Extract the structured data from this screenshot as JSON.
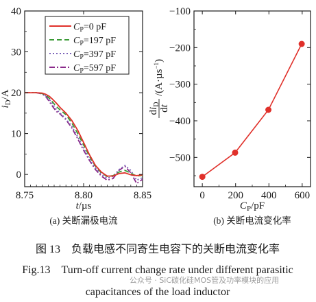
{
  "chart_data": [
    {
      "type": "line",
      "caption": "(a) 关断漏极电流",
      "xlabel": "t/µs",
      "ylabel": "iD/A",
      "xlim": [
        8.75,
        8.85
      ],
      "ylim": [
        -3,
        40
      ],
      "xticks": [
        "8.75",
        "8.80",
        "8.85"
      ],
      "yticks": [
        "0",
        "10",
        "20",
        "30",
        "40"
      ],
      "legend_position": "top-right",
      "series": [
        {
          "name": "CP=0 pF",
          "color": "#e0302a",
          "dash": "",
          "x": [
            8.75,
            8.755,
            8.76,
            8.765,
            8.768,
            8.771,
            8.774,
            8.777,
            8.78,
            8.785,
            8.79,
            8.795,
            8.8,
            8.805,
            8.81,
            8.815,
            8.82,
            8.825,
            8.83,
            8.835,
            8.84,
            8.845,
            8.85
          ],
          "y": [
            20,
            20,
            20,
            19.9,
            19.6,
            19.1,
            18.3,
            17.4,
            16.4,
            15.0,
            13.2,
            10.8,
            7.8,
            4.8,
            2.2,
            0.6,
            -0.4,
            -0.4,
            0.2,
            0.4,
            -0.1,
            -0.3,
            -0.1
          ]
        },
        {
          "name": "CP=197 pF",
          "color": "#3a9a35",
          "dash": "7,4",
          "x": [
            8.75,
            8.755,
            8.76,
            8.765,
            8.768,
            8.771,
            8.774,
            8.777,
            8.78,
            8.785,
            8.79,
            8.795,
            8.8,
            8.805,
            8.81,
            8.815,
            8.82,
            8.825,
            8.83,
            8.835,
            8.84,
            8.845,
            8.85
          ],
          "y": [
            20,
            20,
            20,
            19.8,
            19.4,
            18.6,
            17.6,
            16.6,
            15.8,
            14.6,
            12.6,
            10.0,
            7.2,
            4.4,
            2.0,
            0.4,
            -0.5,
            -0.3,
            0.6,
            1.0,
            0.3,
            -0.4,
            -0.2
          ]
        },
        {
          "name": "CP=397 pF",
          "color": "#7b62b8",
          "dash": "2,3",
          "x": [
            8.75,
            8.755,
            8.76,
            8.765,
            8.768,
            8.771,
            8.774,
            8.777,
            8.78,
            8.785,
            8.79,
            8.795,
            8.8,
            8.805,
            8.81,
            8.815,
            8.82,
            8.825,
            8.83,
            8.835,
            8.84,
            8.845,
            8.85
          ],
          "y": [
            20,
            20,
            20,
            19.8,
            19.2,
            18.3,
            17.1,
            15.9,
            15.0,
            13.6,
            11.8,
            9.2,
            6.4,
            3.8,
            1.6,
            0.0,
            -0.9,
            -0.5,
            1.2,
            2.2,
            1.0,
            -1.4,
            -0.8
          ]
        },
        {
          "name": "CP=597 pF",
          "color": "#8a2a8a",
          "dash": "8,3,2,3",
          "x": [
            8.75,
            8.755,
            8.76,
            8.765,
            8.768,
            8.771,
            8.774,
            8.777,
            8.78,
            8.785,
            8.79,
            8.795,
            8.8,
            8.805,
            8.81,
            8.815,
            8.82,
            8.825,
            8.83,
            8.835,
            8.84,
            8.845,
            8.85
          ],
          "y": [
            20,
            20,
            20,
            19.7,
            19.0,
            17.8,
            16.5,
            15.4,
            14.8,
            13.4,
            11.4,
            8.7,
            5.9,
            3.4,
            1.2,
            -0.4,
            -1.4,
            -1.0,
            1.0,
            2.0,
            0.4,
            -2.2,
            -1.2
          ]
        }
      ]
    },
    {
      "type": "line",
      "caption": "(b) 关断电流变化率",
      "xlabel": "CP/pF",
      "ylabel": "diD/dt/(A·µs⁻¹)",
      "xlim": [
        -50,
        650
      ],
      "ylim": [
        -580,
        -100
      ],
      "xticks": [
        "0",
        "200",
        "400",
        "600"
      ],
      "yticks": [
        "−100",
        "−200",
        "−300",
        "−400",
        "−500"
      ],
      "series": [
        {
          "name": "",
          "color": "#e0302a",
          "markers": true,
          "x": [
            0,
            197,
            397,
            597
          ],
          "y": [
            -553,
            -487,
            -370,
            -190
          ]
        }
      ]
    }
  ],
  "figure_caption_cn": "图 13　负载电感不同寄生电容下的关断电流变化率",
  "figure_caption_en_line1": "Fig.13　Turn-off current change rate under different parasitic",
  "figure_caption_en_line2": "capacitances of the load inductor",
  "watermark": "公众号 · SiC碳化硅MOS管及功率模块的应用"
}
